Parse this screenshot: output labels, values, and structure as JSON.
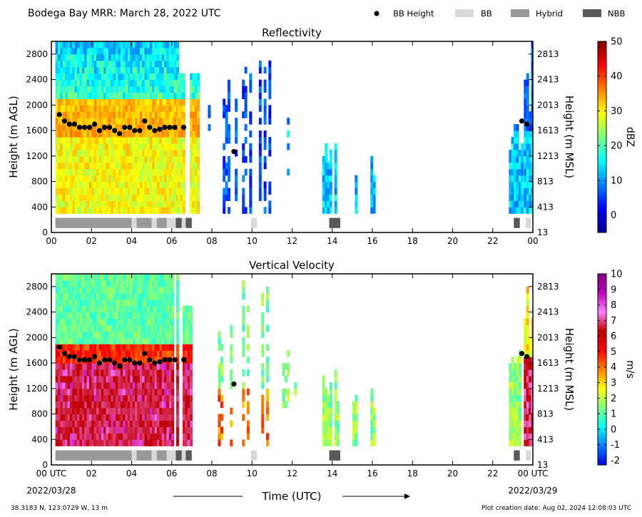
{
  "header": {
    "title": "Bodega Bay MRR:  March 28, 2022 UTC",
    "legend": [
      {
        "label": "BB Height",
        "kind": "dot",
        "color": "#000000"
      },
      {
        "label": "BB",
        "kind": "box",
        "color": "#d9d9d9"
      },
      {
        "label": "Hybrid",
        "kind": "box",
        "color": "#999999"
      },
      {
        "label": "NBB",
        "kind": "box",
        "color": "#595959"
      }
    ]
  },
  "footer": {
    "location": "38.3183 N, 123.0729 W, 13 m",
    "created": "Plot creation date: Aug 02, 2024 12:08:03 UTC",
    "time_label": "Time (UTC)",
    "start_date": "2022/03/28",
    "end_date": "2022/03/29"
  },
  "chart_data": [
    {
      "type": "heatmap",
      "title": "Reflectivity",
      "ylabel": "Height (m AGL)",
      "ylabel_right": "Height (m MSL)",
      "xlim": [
        0,
        24
      ],
      "ylim": [
        0,
        3000
      ],
      "x_ticks": [
        "00",
        "02",
        "04",
        "06",
        "08",
        "10",
        "12",
        "14",
        "16",
        "18",
        "20",
        "22",
        "00"
      ],
      "y_ticks": [
        "0",
        "400",
        "800",
        "1200",
        "1600",
        "2000",
        "2400",
        "2800"
      ],
      "y_ticks_right": [
        "13",
        "413",
        "813",
        "1213",
        "1613",
        "2013",
        "2413",
        "2813"
      ],
      "colorbar": {
        "label": "dBZ",
        "min": -5,
        "max": 50,
        "ticks": [
          "0",
          "10",
          "20",
          "30",
          "40",
          "50"
        ],
        "colors": [
          "#00008f",
          "#0000ff",
          "#0080ff",
          "#00ffff",
          "#80ff80",
          "#ffff00",
          "#ff8000",
          "#ff0000",
          "#800000"
        ]
      },
      "bb_height": {
        "x": [
          0.4,
          0.65,
          0.9,
          1.15,
          1.4,
          1.65,
          1.9,
          2.15,
          2.4,
          2.65,
          2.9,
          3.15,
          3.4,
          3.65,
          3.9,
          4.15,
          4.4,
          4.65,
          4.9,
          5.15,
          5.4,
          5.65,
          5.9,
          6.15,
          6.6,
          9.1,
          23.45,
          23.7
        ],
        "y": [
          1850,
          1750,
          1700,
          1700,
          1650,
          1650,
          1650,
          1700,
          1600,
          1650,
          1650,
          1600,
          1550,
          1650,
          1650,
          1600,
          1600,
          1750,
          1650,
          1600,
          1620,
          1650,
          1650,
          1650,
          1650,
          1270,
          1750,
          1700
        ]
      },
      "bb_type": [
        {
          "start": 0.2,
          "end": 4.0,
          "type": "Hybrid"
        },
        {
          "start": 4.0,
          "end": 4.25,
          "type": "BB"
        },
        {
          "start": 4.25,
          "end": 5.0,
          "type": "Hybrid"
        },
        {
          "start": 5.0,
          "end": 5.25,
          "type": "BB"
        },
        {
          "start": 5.25,
          "end": 5.75,
          "type": "Hybrid"
        },
        {
          "start": 5.75,
          "end": 6.2,
          "type": "BB"
        },
        {
          "start": 6.2,
          "end": 6.5,
          "type": "NBB"
        },
        {
          "start": 6.5,
          "end": 6.7,
          "type": "BB"
        },
        {
          "start": 6.7,
          "end": 7.0,
          "type": "NBB"
        },
        {
          "start": 9.95,
          "end": 10.25,
          "type": "BB"
        },
        {
          "start": 13.85,
          "end": 14.4,
          "type": "NBB"
        },
        {
          "start": 23.05,
          "end": 23.35,
          "type": "NBB"
        },
        {
          "start": 23.65,
          "end": 23.9,
          "type": "BB"
        }
      ]
    },
    {
      "type": "heatmap",
      "title": "Vertical Velocity",
      "ylabel": "Height (m AGL)",
      "ylabel_right": "Height (m MSL)",
      "xlim": [
        0,
        24
      ],
      "ylim": [
        0,
        3000
      ],
      "x_ticks": [
        "00 UTC",
        "02",
        "04",
        "06",
        "08",
        "10",
        "12",
        "14",
        "16",
        "18",
        "20",
        "22",
        "00 UTC"
      ],
      "y_ticks": [
        "0",
        "400",
        "800",
        "1200",
        "1600",
        "2000",
        "2400",
        "2800"
      ],
      "y_ticks_right": [
        "13",
        "413",
        "813",
        "1213",
        "1613",
        "2013",
        "2413",
        "2813"
      ],
      "colorbar": {
        "label": "m/s",
        "min": -2.3,
        "max": 10,
        "ticks": [
          "-2",
          "-1",
          "0",
          "1",
          "2",
          "3",
          "4",
          "5",
          "6",
          "7",
          "8",
          "9",
          "10"
        ],
        "colors": [
          "#0000ff",
          "#0080ff",
          "#00ffff",
          "#80ff80",
          "#ffff00",
          "#ff8000",
          "#ff0000",
          "#c00000",
          "#ff80ff",
          "#c000c0",
          "#800080"
        ]
      },
      "bb_height": {
        "x": [
          0.4,
          0.65,
          0.9,
          1.15,
          1.4,
          1.65,
          1.9,
          2.15,
          2.4,
          2.65,
          2.9,
          3.15,
          3.4,
          3.65,
          3.9,
          4.15,
          4.4,
          4.65,
          4.9,
          5.15,
          5.4,
          5.65,
          5.9,
          6.15,
          6.6,
          9.1,
          23.45,
          23.7
        ],
        "y": [
          1850,
          1750,
          1700,
          1700,
          1650,
          1650,
          1650,
          1700,
          1600,
          1650,
          1650,
          1600,
          1550,
          1650,
          1650,
          1600,
          1600,
          1750,
          1650,
          1600,
          1620,
          1650,
          1650,
          1650,
          1650,
          1270,
          1750,
          1700
        ]
      },
      "bb_type": [
        {
          "start": 0.2,
          "end": 4.0,
          "type": "Hybrid"
        },
        {
          "start": 4.0,
          "end": 4.25,
          "type": "BB"
        },
        {
          "start": 4.25,
          "end": 5.0,
          "type": "Hybrid"
        },
        {
          "start": 5.0,
          "end": 5.25,
          "type": "BB"
        },
        {
          "start": 5.25,
          "end": 5.75,
          "type": "Hybrid"
        },
        {
          "start": 5.75,
          "end": 6.2,
          "type": "BB"
        },
        {
          "start": 6.2,
          "end": 6.5,
          "type": "NBB"
        },
        {
          "start": 6.5,
          "end": 6.7,
          "type": "BB"
        },
        {
          "start": 6.7,
          "end": 7.0,
          "type": "NBB"
        },
        {
          "start": 9.95,
          "end": 10.25,
          "type": "BB"
        },
        {
          "start": 13.85,
          "end": 14.4,
          "type": "NBB"
        },
        {
          "start": 23.05,
          "end": 23.35,
          "type": "NBB"
        },
        {
          "start": 23.65,
          "end": 23.9,
          "type": "BB"
        }
      ]
    }
  ]
}
